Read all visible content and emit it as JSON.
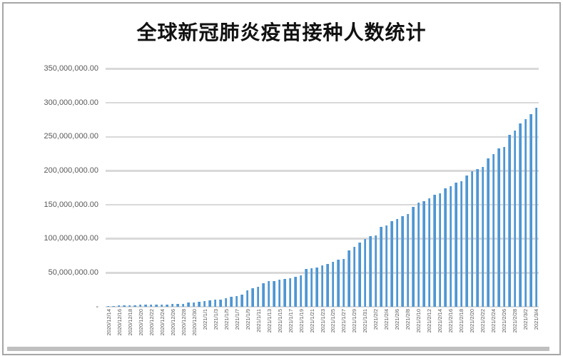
{
  "chart_data": {
    "type": "bar",
    "title": "全球新冠肺炎疫苗接种人数统计",
    "xlabel": "",
    "ylabel": "",
    "legend": "none",
    "grid": true,
    "ylim": [
      0,
      350000000
    ],
    "y_ticks": [
      350000000,
      300000000,
      250000000,
      200000000,
      150000000,
      100000000,
      50000000,
      0
    ],
    "y_tick_labels": [
      "350,000,000.00",
      "300,000,000.00",
      "250,000,000.00",
      "200,000,000.00",
      "150,000,000.00",
      "100,000,000.00",
      "50,000,000.00",
      "-"
    ],
    "x_tick_label_step": 2,
    "bar_color": "#4E96D3",
    "gridline_color": "#D9D9D9",
    "axis_label_color": "#595959",
    "categories": [
      "2020/12/14",
      "2020/12/15",
      "2020/12/16",
      "2020/12/17",
      "2020/12/18",
      "2020/12/19",
      "2020/12/20",
      "2020/12/21",
      "2020/12/22",
      "2020/12/23",
      "2020/12/24",
      "2020/12/25",
      "2020/12/26",
      "2020/12/27",
      "2020/12/28",
      "2020/12/29",
      "2020/12/30",
      "2020/12/31",
      "2021/1/1",
      "2021/1/2",
      "2021/1/3",
      "2021/1/4",
      "2021/1/5",
      "2021/1/6",
      "2021/1/7",
      "2021/1/8",
      "2021/1/9",
      "2021/1/10",
      "2021/1/11",
      "2021/1/12",
      "2021/1/13",
      "2021/1/14",
      "2021/1/15",
      "2021/1/16",
      "2021/1/17",
      "2021/1/18",
      "2021/1/19",
      "2021/1/20",
      "2021/1/21",
      "2021/1/22",
      "2021/1/23",
      "2021/1/24",
      "2021/1/25",
      "2021/1/26",
      "2021/1/27",
      "2021/1/28",
      "2021/1/29",
      "2021/1/30",
      "2021/1/31",
      "2021/2/1",
      "2021/2/2",
      "2021/2/3",
      "2021/2/4",
      "2021/2/5",
      "2021/2/6",
      "2021/2/7",
      "2021/2/8",
      "2021/2/9",
      "2021/2/10",
      "2021/2/11",
      "2021/2/12",
      "2021/2/13",
      "2021/2/14",
      "2021/2/15",
      "2021/2/16",
      "2021/2/17",
      "2021/2/18",
      "2021/2/19",
      "2021/2/20",
      "2021/2/21",
      "2021/2/22",
      "2021/2/23",
      "2021/2/24",
      "2021/2/25",
      "2021/2/26",
      "2021/2/27",
      "2021/2/28",
      "2021/3/1",
      "2021/3/2",
      "2021/3/3",
      "2021/3/4"
    ],
    "values": [
      1100000,
      1400000,
      1700000,
      2000000,
      2200000,
      2500000,
      2700000,
      2900000,
      3000000,
      3200000,
      3300000,
      3500000,
      3700000,
      3900000,
      4600000,
      5800000,
      6600000,
      7400000,
      8300000,
      9400000,
      10100000,
      11000000,
      13000000,
      14500000,
      15700000,
      18100000,
      24100000,
      27600000,
      29300000,
      34500000,
      37900000,
      38200000,
      39700000,
      41400000,
      42100000,
      43800000,
      46600000,
      55200000,
      56900000,
      57600000,
      61000000,
      63100000,
      66600000,
      69000000,
      70700000,
      82800000,
      88600000,
      94000000,
      100000000,
      103400000,
      105200000,
      117200000,
      120000000,
      125900000,
      128600000,
      133400000,
      136200000,
      147200000,
      153400000,
      155200000,
      159700000,
      164800000,
      167200000,
      174100000,
      176900000,
      182800000,
      185200000,
      193100000,
      199000000,
      202400000,
      205900000,
      218400000,
      224200000,
      232800000,
      235600000,
      252900000,
      258700000,
      270100000,
      276000000,
      282900000,
      292300000
    ]
  }
}
